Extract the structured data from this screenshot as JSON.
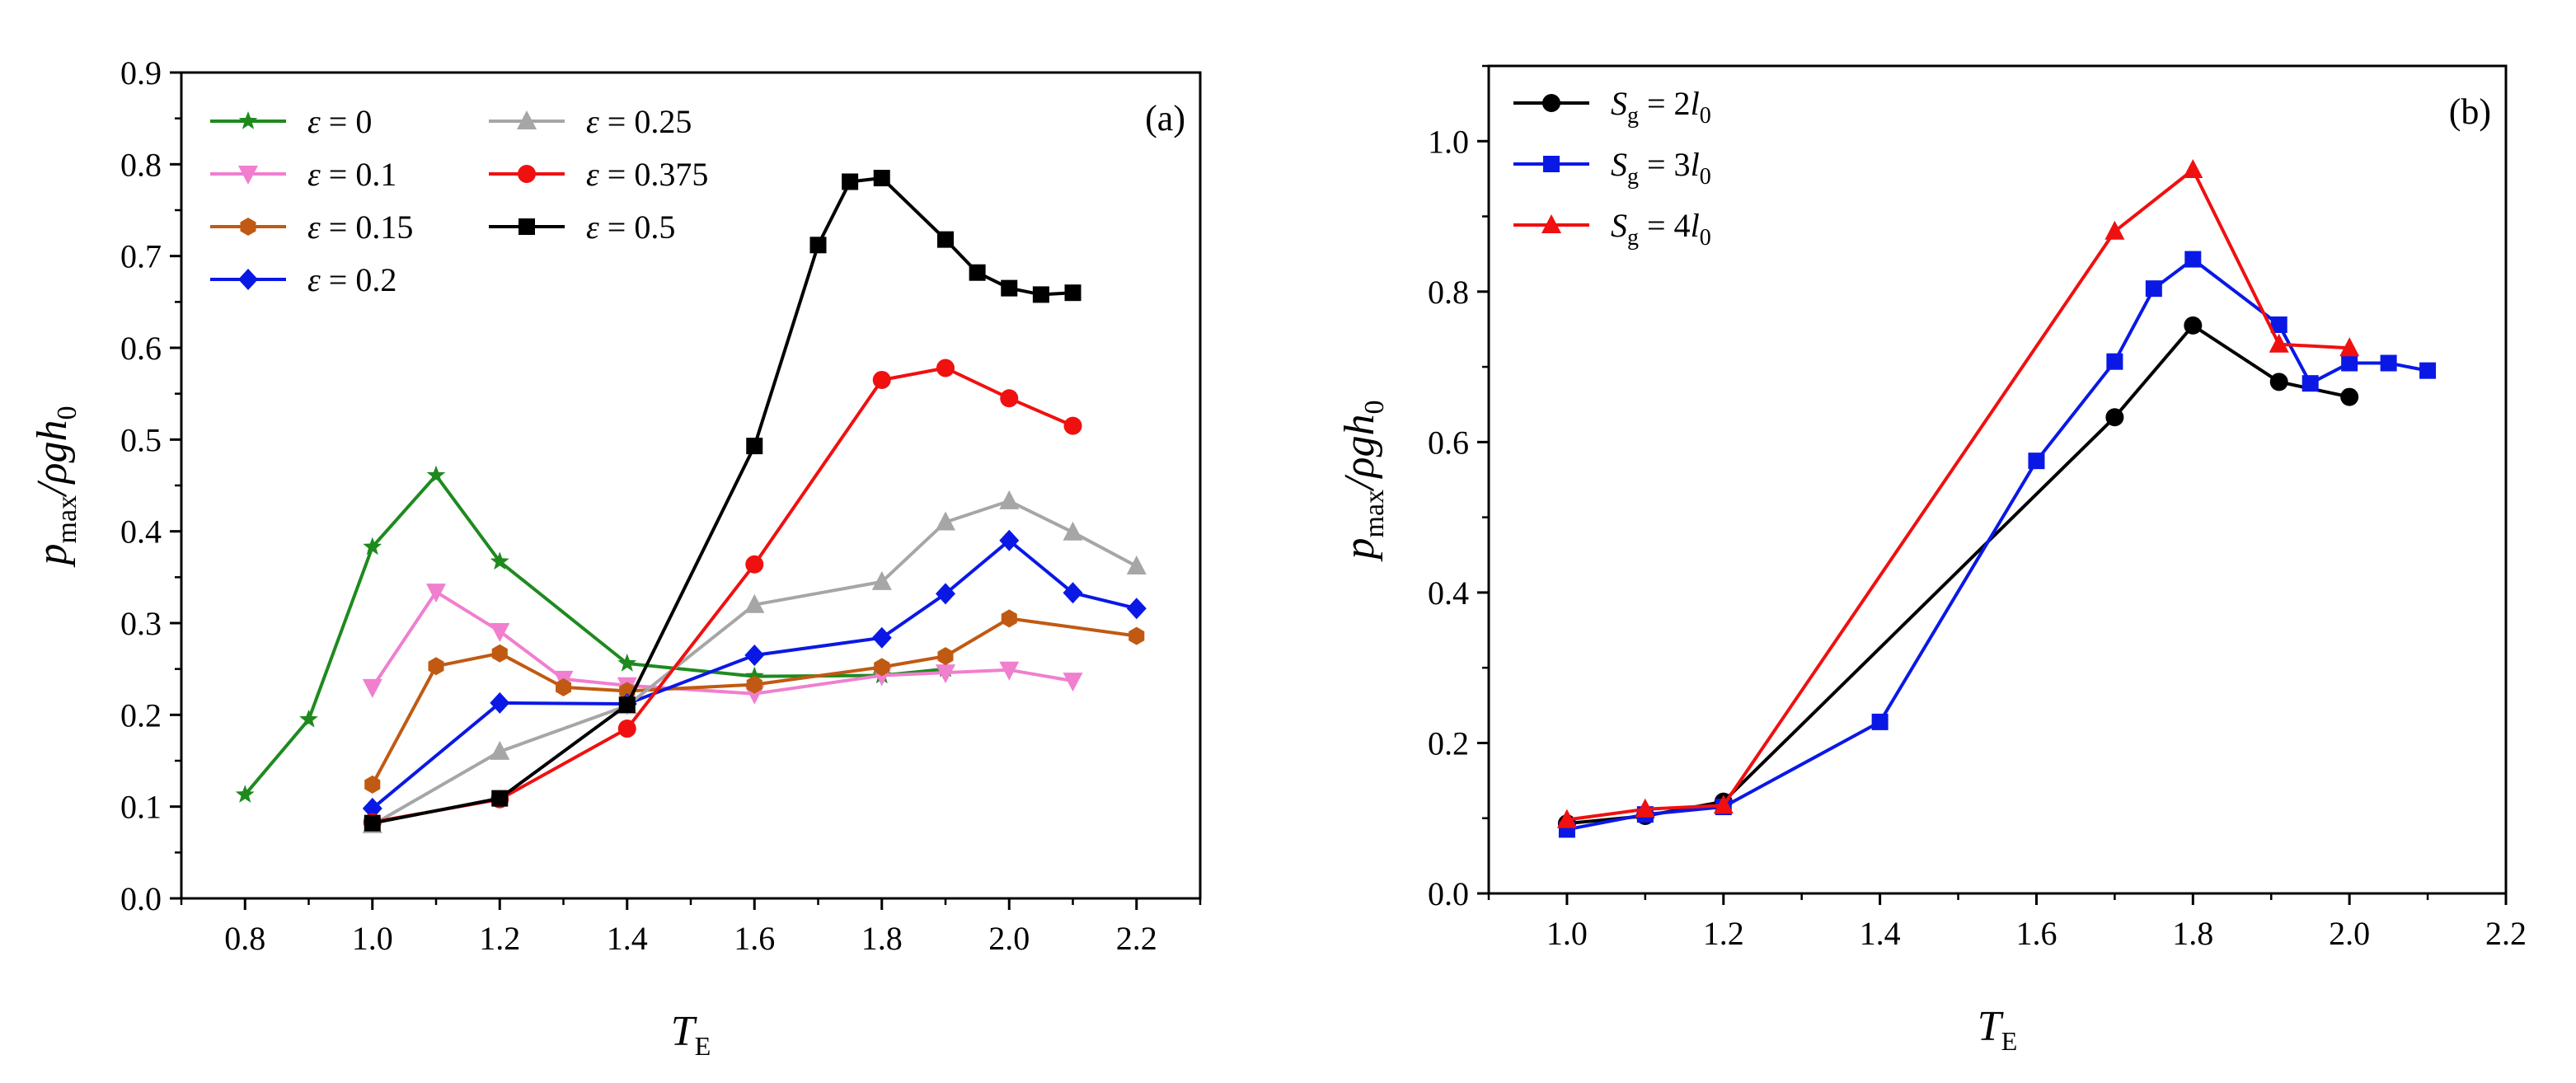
{
  "chart_data": [
    {
      "type": "line",
      "panel_label": "(a)",
      "xlabel": {
        "main": "T",
        "sub": "E"
      },
      "ylabel": {
        "p": "p",
        "sub": "max",
        "rest": "/ρgh",
        "zero": "0"
      },
      "xlim": [
        0.7,
        2.3
      ],
      "ylim": [
        0.0,
        0.9
      ],
      "xticks": [
        0.8,
        1.0,
        1.2,
        1.4,
        1.6,
        1.8,
        2.0,
        2.2
      ],
      "xtick_labels": [
        "0.8",
        "1.0",
        "1.2",
        "1.4",
        "1.6",
        "1.8",
        "2.0",
        "2.2"
      ],
      "yticks": [
        0.0,
        0.1,
        0.2,
        0.3,
        0.4,
        0.5,
        0.6,
        0.7,
        0.8,
        0.9
      ],
      "ytick_labels": [
        "0.0",
        "0.1",
        "0.2",
        "0.3",
        "0.4",
        "0.5",
        "0.6",
        "0.7",
        "0.8",
        "0.9"
      ],
      "legend_position": "top-left",
      "series": [
        {
          "name": "ε = 0",
          "symbol": "ε",
          "rest": " = 0",
          "color": "#1e8a1e",
          "marker": "star",
          "x": [
            0.8,
            0.9,
            1.0,
            1.1,
            1.2,
            1.4,
            1.6,
            1.8,
            1.9
          ],
          "y": [
            0.113,
            0.195,
            0.383,
            0.461,
            0.367,
            0.256,
            0.242,
            0.243,
            0.25
          ]
        },
        {
          "name": "ε = 0.1",
          "symbol": "ε",
          "rest": " = 0.1",
          "color": "#f07fcf",
          "marker": "triangle-down",
          "x": [
            1.0,
            1.1,
            1.2,
            1.3,
            1.4,
            1.6,
            1.8,
            1.9,
            2.0,
            2.1
          ],
          "y": [
            0.23,
            0.334,
            0.291,
            0.239,
            0.232,
            0.223,
            0.243,
            0.246,
            0.249,
            0.237
          ]
        },
        {
          "name": "ε = 0.15",
          "symbol": "ε",
          "rest": " = 0.15",
          "color": "#c05a12",
          "marker": "hexagon",
          "x": [
            1.0,
            1.1,
            1.2,
            1.3,
            1.4,
            1.6,
            1.8,
            1.9,
            2.0,
            2.2
          ],
          "y": [
            0.124,
            0.253,
            0.267,
            0.23,
            0.226,
            0.233,
            0.252,
            0.264,
            0.305,
            0.286
          ]
        },
        {
          "name": "ε = 0.2",
          "symbol": "ε",
          "rest": " = 0.2",
          "color": "#0a18e6",
          "marker": "diamond",
          "x": [
            1.0,
            1.2,
            1.4,
            1.6,
            1.8,
            1.9,
            2.0,
            2.1,
            2.2
          ],
          "y": [
            0.098,
            0.213,
            0.212,
            0.265,
            0.284,
            0.332,
            0.39,
            0.333,
            0.316
          ]
        },
        {
          "name": "ε = 0.25",
          "symbol": "ε",
          "rest": " = 0.25",
          "color": "#a6a6a6",
          "marker": "triangle-up",
          "x": [
            1.0,
            1.2,
            1.4,
            1.6,
            1.8,
            1.9,
            2.0,
            2.1,
            2.2
          ],
          "y": [
            0.08,
            0.16,
            0.21,
            0.32,
            0.345,
            0.41,
            0.433,
            0.399,
            0.362
          ]
        },
        {
          "name": "ε = 0.375",
          "symbol": "ε",
          "rest": " = 0.375",
          "color": "#f01010",
          "marker": "circle",
          "x": [
            1.0,
            1.2,
            1.4,
            1.6,
            1.8,
            1.9,
            2.0,
            2.1
          ],
          "y": [
            0.083,
            0.108,
            0.185,
            0.364,
            0.565,
            0.578,
            0.545,
            0.515
          ]
        },
        {
          "name": "ε = 0.5",
          "symbol": "ε",
          "rest": " = 0.5",
          "color": "#000000",
          "marker": "square",
          "x": [
            1.0,
            1.2,
            1.4,
            1.6,
            1.7,
            1.75,
            1.8,
            1.9,
            1.95,
            2.0,
            2.05,
            2.1
          ],
          "y": [
            0.082,
            0.109,
            0.211,
            0.493,
            0.712,
            0.781,
            0.785,
            0.718,
            0.682,
            0.665,
            0.658,
            0.66
          ]
        }
      ]
    },
    {
      "type": "line",
      "panel_label": "(b)",
      "xlabel": {
        "main": "T",
        "sub": "E"
      },
      "ylabel": {
        "p": "p",
        "sub": "max",
        "rest": "/ρgh",
        "zero": "0"
      },
      "xlim": [
        0.9,
        2.2
      ],
      "ylim": [
        0.0,
        1.1
      ],
      "xticks": [
        1.0,
        1.2,
        1.4,
        1.6,
        1.8,
        2.0,
        2.2
      ],
      "xtick_labels": [
        "1.0",
        "1.2",
        "1.4",
        "1.6",
        "1.8",
        "2.0",
        "2.2"
      ],
      "yticks": [
        0.0,
        0.2,
        0.4,
        0.6,
        0.8,
        1.0
      ],
      "ytick_labels": [
        "0.0",
        "0.2",
        "0.4",
        "0.6",
        "0.8",
        "1.0"
      ],
      "legend_position": "top-left",
      "series": [
        {
          "name": "S_g = 2l_0",
          "sym": "S",
          "symsub": "g",
          "eq": " = 2",
          "l": "l",
          "lsub": "0",
          "color": "#000000",
          "marker": "circle",
          "x": [
            1.0,
            1.1,
            1.2,
            1.7,
            1.8,
            1.91,
            2.0
          ],
          "y": [
            0.093,
            0.103,
            0.122,
            0.633,
            0.755,
            0.68,
            0.66
          ]
        },
        {
          "name": "S_g = 3l_0",
          "sym": "S",
          "symsub": "g",
          "eq": " = 3",
          "l": "l",
          "lsub": "0",
          "color": "#0a18e6",
          "marker": "square",
          "x": [
            1.0,
            1.1,
            1.2,
            1.4,
            1.6,
            1.7,
            1.75,
            1.8,
            1.91,
            1.95,
            2.0,
            2.05,
            2.1
          ],
          "y": [
            0.085,
            0.105,
            0.115,
            0.228,
            0.575,
            0.707,
            0.804,
            0.843,
            0.756,
            0.678,
            0.705,
            0.705,
            0.695
          ]
        },
        {
          "name": "S_g = 4l_0",
          "sym": "S",
          "symsub": "g",
          "eq": " = 4",
          "l": "l",
          "lsub": "0",
          "color": "#f01010",
          "marker": "triangle-up",
          "x": [
            1.0,
            1.1,
            1.2,
            1.7,
            1.8,
            1.91,
            2.0
          ],
          "y": [
            0.098,
            0.112,
            0.117,
            0.88,
            0.962,
            0.73,
            0.725
          ]
        }
      ]
    }
  ]
}
